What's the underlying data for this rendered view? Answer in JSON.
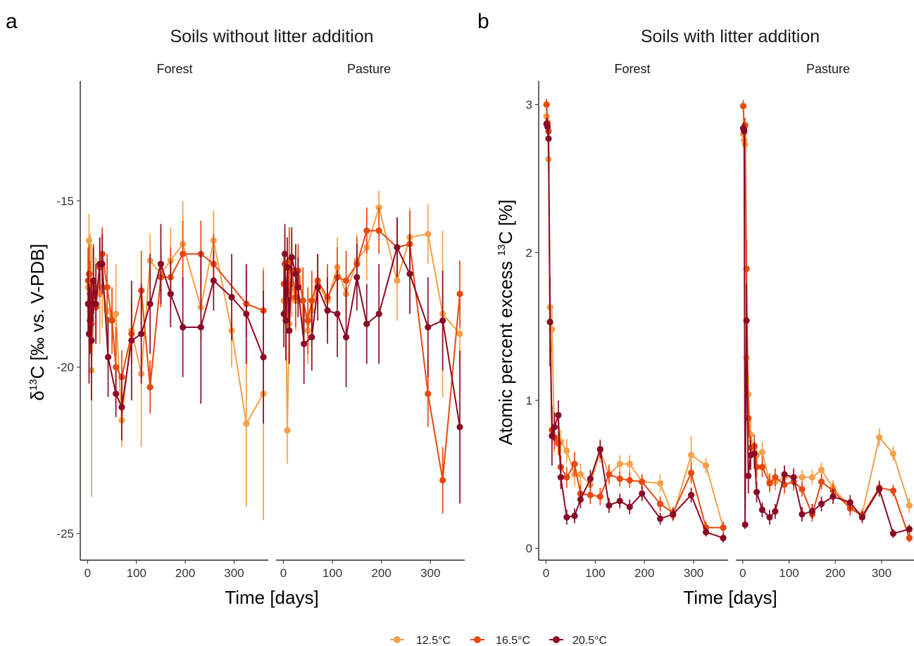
{
  "panel_letters": [
    "a",
    "b"
  ],
  "legend": {
    "entries": [
      {
        "label": "12.5°C",
        "color": "#F5A04A"
      },
      {
        "label": "16.5°C",
        "color": "#E8490F"
      },
      {
        "label": "20.5°C",
        "color": "#8B0A25"
      }
    ]
  },
  "chart_data": [
    {
      "type": "line",
      "title": "Soils without litter addition",
      "facets": [
        "Forest",
        "Pasture"
      ],
      "xlabel": "Time [days]",
      "ylabel_parts": [
        "δ",
        "13",
        "C [‰ vs. V-PDB]"
      ],
      "xlim": [
        -15,
        370
      ],
      "ylim": [
        -25.8,
        -11.4
      ],
      "xticks": [
        0,
        100,
        200,
        300
      ],
      "yticks": [
        -25,
        -20,
        -15
      ],
      "grid": false,
      "series": [
        {
          "name": "12.5°C",
          "facet": "Forest",
          "color": "#F5A04A",
          "x": [
            1,
            3,
            5,
            8,
            12,
            17,
            25,
            30,
            40,
            50,
            58,
            70,
            90,
            110,
            128,
            150,
            170,
            195,
            232,
            258,
            295,
            325,
            360
          ],
          "y": [
            -17.6,
            -16.2,
            -17.2,
            -20.1,
            -17.8,
            -17.6,
            -17.8,
            -17.6,
            -18.3,
            -18.5,
            -18.4,
            -21.6,
            -18.9,
            -20.2,
            -16.8,
            -17.2,
            -16.8,
            -16.3,
            -18.2,
            -16.2,
            -18.9,
            -21.7,
            -20.8
          ],
          "err": [
            1.0,
            0.8,
            1.2,
            3.8,
            1.5,
            0.9,
            1.5,
            1.2,
            1.0,
            0.8,
            1.5,
            0.8,
            1.0,
            2.2,
            0.8,
            1.0,
            1.0,
            1.3,
            1.0,
            0.9,
            1.1,
            2.5,
            3.8
          ]
        },
        {
          "name": "16.5°C",
          "facet": "Forest",
          "color": "#E8490F",
          "x": [
            1,
            3,
            5,
            8,
            12,
            17,
            25,
            30,
            40,
            50,
            58,
            70,
            90,
            110,
            128,
            150,
            170,
            195,
            232,
            258,
            325,
            360
          ],
          "y": [
            -17.4,
            -17.2,
            -17.8,
            -18.7,
            -17.5,
            -18.2,
            -17.0,
            -16.6,
            -17.6,
            -18.6,
            -20.0,
            -20.3,
            -19.0,
            -17.7,
            -20.6,
            -17.3,
            -17.3,
            -16.6,
            -16.6,
            -16.9,
            -18.1,
            -18.3
          ],
          "err": [
            1.0,
            0.9,
            1.0,
            1.0,
            1.2,
            1.0,
            0.9,
            0.8,
            1.0,
            1.0,
            1.2,
            0.8,
            0.9,
            1.2,
            0.8,
            0.9,
            0.9,
            1.0,
            1.0,
            0.9,
            1.0,
            1.2
          ]
        },
        {
          "name": "20.5°C",
          "facet": "Forest",
          "color": "#8B0A25",
          "x": [
            1,
            3,
            5,
            8,
            12,
            17,
            25,
            30,
            42,
            58,
            70,
            90,
            110,
            128,
            150,
            170,
            195,
            232,
            258,
            295,
            325,
            360
          ],
          "y": [
            -18.1,
            -19.0,
            -18.6,
            -19.2,
            -17.4,
            -18.1,
            -16.9,
            -16.9,
            -19.7,
            -20.8,
            -21.2,
            -19.2,
            -19.0,
            -18.1,
            -16.9,
            -17.8,
            -18.8,
            -18.8,
            -17.4,
            -17.9,
            -18.4,
            -19.7
          ],
          "err": [
            1.0,
            1.5,
            1.0,
            1.8,
            1.0,
            1.2,
            0.8,
            0.9,
            1.2,
            0.7,
            1.0,
            1.8,
            1.5,
            1.5,
            1.2,
            1.0,
            1.5,
            2.3,
            0.9,
            1.3,
            1.5,
            2.0
          ]
        },
        {
          "name": "12.5°C",
          "facet": "Pasture",
          "color": "#F5A04A",
          "x": [
            1,
            3,
            5,
            8,
            12,
            17,
            25,
            30,
            40,
            50,
            58,
            70,
            90,
            110,
            128,
            150,
            170,
            195,
            232,
            258,
            295,
            325,
            360
          ],
          "y": [
            -18.0,
            -17.5,
            -18.3,
            -21.9,
            -18.7,
            -17.5,
            -18.0,
            -17.3,
            -18.0,
            -18.9,
            -18.3,
            -17.5,
            -18.0,
            -17.0,
            -17.8,
            -16.8,
            -16.4,
            -15.2,
            -17.4,
            -16.1,
            -16.0,
            -18.4,
            -19.0
          ],
          "err": [
            1.0,
            0.8,
            1.0,
            1.0,
            1.0,
            1.0,
            0.9,
            0.8,
            1.0,
            1.0,
            0.9,
            0.8,
            1.0,
            0.9,
            0.9,
            0.8,
            1.0,
            0.5,
            1.2,
            0.9,
            0.9,
            2.5,
            1.0
          ]
        },
        {
          "name": "16.5°C",
          "facet": "Pasture",
          "color": "#E8490F",
          "x": [
            1,
            3,
            5,
            8,
            12,
            17,
            25,
            30,
            40,
            50,
            58,
            70,
            90,
            110,
            128,
            150,
            170,
            195,
            232,
            258,
            295,
            325,
            360
          ],
          "y": [
            -17.5,
            -16.9,
            -18.5,
            -18.0,
            -16.8,
            -17.1,
            -17.9,
            -17.1,
            -18.0,
            -18.6,
            -18.0,
            -17.4,
            -17.9,
            -17.3,
            -17.4,
            -16.9,
            -15.9,
            -15.9,
            -16.4,
            -16.3,
            -20.8,
            -23.4,
            -17.8
          ],
          "err": [
            1.0,
            0.9,
            1.0,
            1.0,
            1.0,
            0.9,
            0.9,
            0.8,
            1.0,
            1.0,
            0.9,
            0.8,
            1.0,
            0.9,
            0.9,
            0.8,
            0.7,
            0.7,
            0.9,
            1.0,
            1.0,
            1.0,
            1.0
          ]
        },
        {
          "name": "20.5°C",
          "facet": "Pasture",
          "color": "#8B0A25",
          "x": [
            1,
            3,
            5,
            8,
            12,
            17,
            25,
            30,
            42,
            58,
            70,
            90,
            110,
            128,
            150,
            170,
            195,
            232,
            258,
            295,
            325,
            360
          ],
          "y": [
            -18.4,
            -16.6,
            -18.6,
            -17.0,
            -18.9,
            -16.7,
            -17.2,
            -17.6,
            -19.3,
            -19.1,
            -17.6,
            -18.3,
            -18.4,
            -19.1,
            -17.3,
            -18.7,
            -18.4,
            -16.4,
            -17.2,
            -18.8,
            -18.6,
            -21.8
          ],
          "err": [
            1.0,
            0.9,
            1.2,
            0.9,
            1.0,
            0.9,
            0.9,
            0.9,
            1.2,
            1.0,
            1.0,
            1.0,
            1.3,
            1.5,
            1.0,
            1.2,
            1.5,
            0.9,
            1.2,
            1.5,
            1.5,
            2.3
          ]
        }
      ]
    },
    {
      "type": "line",
      "title": "Soils with litter addition",
      "facets": [
        "Forest",
        "Pasture"
      ],
      "xlabel": "Time [days]",
      "ylabel_parts": [
        "Atomic percent excess ",
        "13",
        "C [%]"
      ],
      "xlim": [
        -15,
        370
      ],
      "ylim": [
        -0.08,
        3.16
      ],
      "xticks": [
        0,
        100,
        200,
        300
      ],
      "yticks": [
        0,
        1,
        2,
        3
      ],
      "grid": false,
      "series": [
        {
          "name": "12.5°C",
          "facet": "Forest",
          "color": "#F5A04A",
          "x": [
            1,
            3,
            5,
            8,
            12,
            17,
            25,
            30,
            42,
            58,
            70,
            90,
            110,
            128,
            150,
            170,
            195,
            232,
            258,
            295,
            325,
            360
          ],
          "y": [
            2.92,
            2.88,
            2.63,
            1.63,
            1.48,
            0.75,
            0.73,
            0.72,
            0.66,
            0.5,
            0.5,
            0.43,
            0.66,
            0.5,
            0.57,
            0.57,
            0.45,
            0.44,
            0.22,
            0.63,
            0.56,
            0.14
          ],
          "err": [
            0.05,
            0.05,
            0.08,
            0.18,
            0.15,
            0.1,
            0.08,
            0.08,
            0.08,
            0.08,
            0.07,
            0.07,
            0.08,
            0.07,
            0.06,
            0.06,
            0.05,
            0.06,
            0.04,
            0.13,
            0.05,
            0.04
          ]
        },
        {
          "name": "16.5°C",
          "facet": "Forest",
          "color": "#E8490F",
          "x": [
            1,
            3,
            5,
            8,
            12,
            17,
            25,
            30,
            42,
            58,
            70,
            90,
            110,
            128,
            150,
            170,
            195,
            232,
            258,
            295,
            325,
            360
          ],
          "y": [
            3.0,
            2.87,
            2.82,
            1.53,
            0.8,
            0.75,
            0.71,
            0.55,
            0.48,
            0.57,
            0.37,
            0.36,
            0.35,
            0.5,
            0.47,
            0.46,
            0.45,
            0.3,
            0.24,
            0.51,
            0.14,
            0.14
          ],
          "err": [
            0.04,
            0.05,
            0.06,
            0.2,
            0.1,
            0.08,
            0.08,
            0.08,
            0.07,
            0.08,
            0.06,
            0.06,
            0.06,
            0.06,
            0.05,
            0.05,
            0.05,
            0.05,
            0.04,
            0.07,
            0.04,
            0.04
          ]
        },
        {
          "name": "20.5°C",
          "facet": "Forest",
          "color": "#8B0A25",
          "x": [
            1,
            3,
            5,
            8,
            12,
            17,
            25,
            30,
            42,
            58,
            70,
            90,
            110,
            128,
            150,
            170,
            195,
            232,
            258,
            295,
            325,
            360
          ],
          "y": [
            2.87,
            2.85,
            2.77,
            1.53,
            0.76,
            0.82,
            0.9,
            0.48,
            0.21,
            0.22,
            0.33,
            0.47,
            0.67,
            0.29,
            0.32,
            0.28,
            0.37,
            0.2,
            0.23,
            0.36,
            0.11,
            0.07
          ],
          "err": [
            0.04,
            0.05,
            0.06,
            0.3,
            0.2,
            0.1,
            0.1,
            0.08,
            0.05,
            0.05,
            0.06,
            0.06,
            0.06,
            0.05,
            0.05,
            0.05,
            0.05,
            0.04,
            0.04,
            0.05,
            0.03,
            0.03
          ]
        },
        {
          "name": "12.5°C",
          "facet": "Pasture",
          "color": "#F5A04A",
          "x": [
            1,
            3,
            5,
            8,
            12,
            17,
            25,
            30,
            42,
            58,
            70,
            90,
            110,
            128,
            150,
            170,
            195,
            232,
            258,
            295,
            325,
            360
          ],
          "y": [
            2.8,
            2.76,
            2.73,
            1.29,
            1.04,
            0.77,
            0.65,
            0.63,
            0.65,
            0.45,
            0.45,
            0.48,
            0.48,
            0.48,
            0.48,
            0.53,
            0.41,
            0.28,
            0.23,
            0.75,
            0.64,
            0.29
          ],
          "err": [
            0.05,
            0.05,
            0.06,
            0.2,
            0.15,
            0.1,
            0.08,
            0.08,
            0.07,
            0.06,
            0.06,
            0.06,
            0.06,
            0.05,
            0.05,
            0.05,
            0.05,
            0.05,
            0.04,
            0.06,
            0.05,
            0.05
          ]
        },
        {
          "name": "16.5°C",
          "facet": "Pasture",
          "color": "#E8490F",
          "x": [
            1,
            3,
            5,
            8,
            12,
            17,
            25,
            30,
            42,
            58,
            70,
            90,
            110,
            128,
            150,
            170,
            195,
            232,
            258,
            295,
            325,
            360
          ],
          "y": [
            2.99,
            2.84,
            2.86,
            1.89,
            0.88,
            0.68,
            0.69,
            0.55,
            0.55,
            0.44,
            0.48,
            0.43,
            0.45,
            0.4,
            0.23,
            0.45,
            0.39,
            0.27,
            0.22,
            0.41,
            0.39,
            0.07
          ],
          "err": [
            0.04,
            0.05,
            0.05,
            0.2,
            0.1,
            0.08,
            0.08,
            0.07,
            0.07,
            0.06,
            0.06,
            0.06,
            0.06,
            0.05,
            0.05,
            0.05,
            0.05,
            0.05,
            0.04,
            0.05,
            0.04,
            0.03
          ]
        },
        {
          "name": "20.5°C",
          "facet": "Pasture",
          "color": "#8B0A25",
          "x": [
            1,
            3,
            5,
            8,
            12,
            17,
            25,
            30,
            42,
            58,
            70,
            90,
            110,
            128,
            150,
            170,
            195,
            232,
            258,
            295,
            325,
            360
          ],
          "y": [
            2.84,
            2.82,
            0.16,
            1.54,
            0.49,
            0.63,
            0.64,
            0.38,
            0.26,
            0.21,
            0.25,
            0.5,
            0.48,
            0.23,
            0.25,
            0.3,
            0.35,
            0.31,
            0.21,
            0.4,
            0.1,
            0.13
          ],
          "err": [
            0.04,
            0.05,
            0.03,
            0.25,
            0.12,
            0.1,
            0.08,
            0.07,
            0.05,
            0.05,
            0.05,
            0.06,
            0.06,
            0.05,
            0.05,
            0.05,
            0.05,
            0.05,
            0.04,
            0.05,
            0.03,
            0.03
          ]
        }
      ]
    }
  ]
}
